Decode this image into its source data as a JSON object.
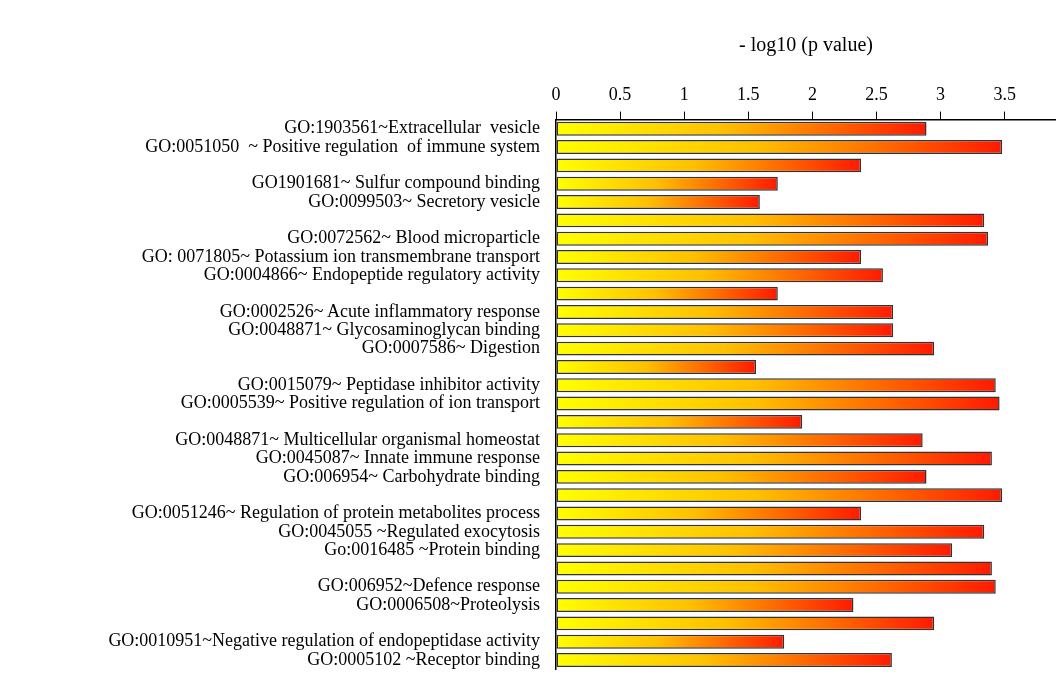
{
  "chart_data": {
    "type": "bar",
    "orientation": "horizontal",
    "xlabel": "- log10 (p value)",
    "categories": [
      "GO:1903561~Extracellular  vesicle",
      "GO:0051050  ~ Positive regulation  of immune system",
      null,
      "GO1901681~ Sulfur compound binding",
      "GO:0099503~ Secretory vesicle",
      null,
      "GO:0072562~ Blood microparticle",
      "GO: 0071805~ Potassium ion transmembrane transport",
      "GO:0004866~ Endopeptide regulatory activity",
      null,
      "GO:0002526~ Acute inflammatory response",
      "GO:0048871~ Glycosaminoglycan binding",
      "GO:0007586~ Digestion",
      null,
      "GO:0015079~ Peptidase inhibitor activity",
      "GO:0005539~ Positive regulation of ion transport",
      null,
      "GO:0048871~ Multicellular organismal homeostat",
      "GO:0045087~ Innate immune response",
      "GO:006954~ Carbohydrate binding",
      null,
      "GO:0051246~ Regulation of protein metabolites process",
      "GO:0045055 ~Regulated exocytosis",
      "Go:0016485 ~Protein binding",
      null,
      "GO:006952~Defence response",
      "GO:0006508~Proteolysis",
      null,
      "GO:0010951~Negative regulation of endopeptidase activity",
      "GO:0005102 ~Receptor binding"
    ],
    "values": [
      2.89,
      3.48,
      2.38,
      1.73,
      1.59,
      3.34,
      3.37,
      2.38,
      2.55,
      1.73,
      2.63,
      2.63,
      2.95,
      1.56,
      3.43,
      3.46,
      1.92,
      2.86,
      3.4,
      2.89,
      3.48,
      2.38,
      3.34,
      3.09,
      3.4,
      3.43,
      2.32,
      2.95,
      1.78,
      2.62
    ],
    "color": "#ff1a00",
    "xlim": [
      0,
      3.9
    ],
    "xticks": [
      0,
      0.5,
      1,
      1.5,
      2,
      2.5,
      3,
      3.5
    ],
    "grid": false,
    "legend": false
  }
}
